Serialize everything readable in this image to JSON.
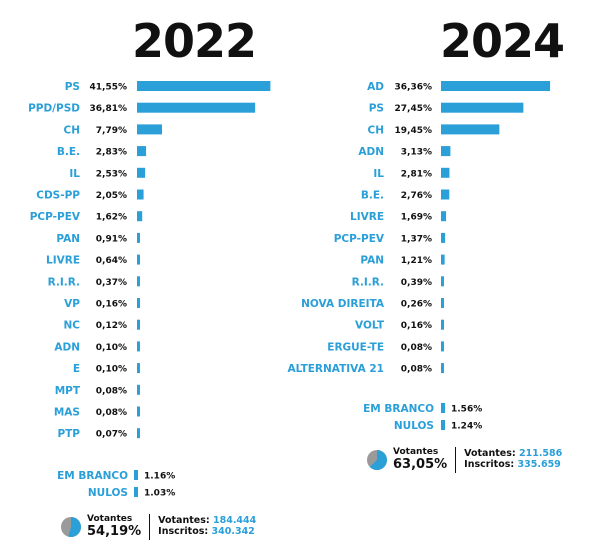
{
  "colors": {
    "bar": "#2a9fd8",
    "label": "#2a9fd8",
    "text": "#111111",
    "pie_dark": "#9a9a9a"
  },
  "chart_data": [
    {
      "type": "bar",
      "orientation": "horizontal",
      "title": "2022",
      "categories": [
        "PS",
        "PPD/PSD",
        "CH",
        "B.E.",
        "IL",
        "CDS-PP",
        "PCP-PEV",
        "PAN",
        "LIVRE",
        "R.I.R.",
        "VP",
        "NC",
        "ADN",
        "E",
        "MPT",
        "MAS",
        "PTP"
      ],
      "values": [
        41.55,
        36.81,
        7.79,
        2.83,
        2.53,
        2.05,
        1.62,
        0.91,
        0.64,
        0.37,
        0.16,
        0.12,
        0.1,
        0.1,
        0.08,
        0.08,
        0.07
      ],
      "value_labels": [
        "41,55%",
        "36,81%",
        "7,79%",
        "2,83%",
        "2,53%",
        "2,05%",
        "1,62%",
        "0,91%",
        "0,64%",
        "0,37%",
        "0,16%",
        "0,12%",
        "0,10%",
        "0,10%",
        "0,08%",
        "0,08%",
        "0,07%"
      ],
      "extras": [
        {
          "label": "EM BRANCO",
          "value": 1.16,
          "value_label": "1.16%"
        },
        {
          "label": "NULOS",
          "value": 1.03,
          "value_label": "1.03%"
        }
      ],
      "turnout": {
        "label": "Votantes",
        "percent": 54.19,
        "percent_label": "54,19%",
        "votantes_label": "Votantes:",
        "votantes": "184.444",
        "inscritos_label": "Inscritos:",
        "inscritos": "340.342"
      }
    },
    {
      "type": "bar",
      "orientation": "horizontal",
      "title": "2024",
      "categories": [
        "AD",
        "PS",
        "CH",
        "ADN",
        "IL",
        "B.E.",
        "LIVRE",
        "PCP-PEV",
        "PAN",
        "R.I.R.",
        "NOVA DIREITA",
        "VOLT",
        "ERGUE-TE",
        "ALTERNATIVA 21"
      ],
      "values": [
        36.36,
        27.45,
        19.45,
        3.13,
        2.81,
        2.76,
        1.69,
        1.37,
        1.21,
        0.39,
        0.26,
        0.16,
        0.08,
        0.08
      ],
      "value_labels": [
        "36,36%",
        "27,45%",
        "19,45%",
        "3,13%",
        "2,81%",
        "2,76%",
        "1,69%",
        "1,37%",
        "1,21%",
        "0,39%",
        "0,26%",
        "0,16%",
        "0,08%",
        "0,08%"
      ],
      "extras": [
        {
          "label": "EM BRANCO",
          "value": 1.56,
          "value_label": "1.56%"
        },
        {
          "label": "NULOS",
          "value": 1.24,
          "value_label": "1.24%"
        }
      ],
      "turnout": {
        "label": "Votantes",
        "percent": 63.05,
        "percent_label": "63,05%",
        "votantes_label": "Votantes:",
        "votantes": "211.586",
        "inscritos_label": "Inscritos:",
        "inscritos": "335.659"
      }
    }
  ]
}
